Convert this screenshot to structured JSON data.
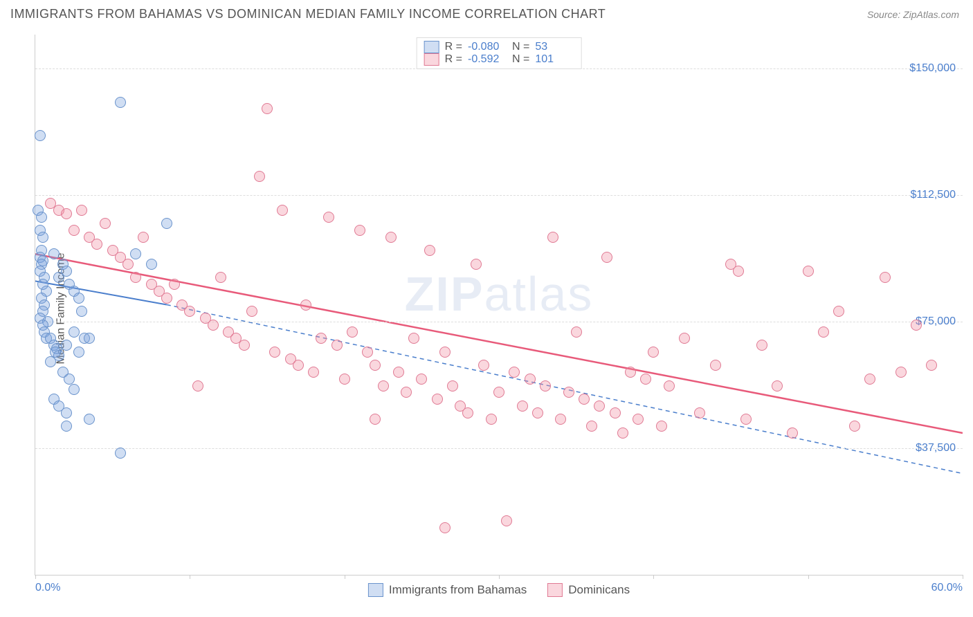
{
  "title": "IMMIGRANTS FROM BAHAMAS VS DOMINICAN MEDIAN FAMILY INCOME CORRELATION CHART",
  "source": "Source: ZipAtlas.com",
  "ylabel": "Median Family Income",
  "watermark_bold": "ZIP",
  "watermark_rest": "atlas",
  "xlim": [
    0,
    60
  ],
  "ylim": [
    0,
    160000
  ],
  "xlim_labels": [
    "0.0%",
    "60.0%"
  ],
  "ytick_values": [
    37500,
    75000,
    112500,
    150000
  ],
  "ytick_labels": [
    "$37,500",
    "$75,000",
    "$112,500",
    "$150,000"
  ],
  "xtick_values": [
    0,
    10,
    20,
    30,
    40,
    50,
    60
  ],
  "series": [
    {
      "name": "Immigrants from Bahamas",
      "fill": "rgba(120,160,220,0.35)",
      "stroke": "#6a93cc",
      "R": "-0.080",
      "N": "53",
      "trend": {
        "x1": 0,
        "y1": 87000,
        "x2": 8.5,
        "y2": 80000,
        "solid_until_x": 8.5,
        "dash_to_x": 60,
        "dash_y2": 30000,
        "color": "#4a7ecc",
        "width": 2
      },
      "points": [
        [
          0.3,
          130000
        ],
        [
          0.2,
          108000
        ],
        [
          0.4,
          106000
        ],
        [
          0.3,
          102000
        ],
        [
          0.5,
          100000
        ],
        [
          0.4,
          96000
        ],
        [
          0.3,
          94000
        ],
        [
          0.5,
          93000
        ],
        [
          0.4,
          92000
        ],
        [
          0.3,
          90000
        ],
        [
          0.6,
          88000
        ],
        [
          0.5,
          86000
        ],
        [
          0.7,
          84000
        ],
        [
          0.4,
          82000
        ],
        [
          0.6,
          80000
        ],
        [
          0.5,
          78000
        ],
        [
          0.3,
          76000
        ],
        [
          0.8,
          75000
        ],
        [
          0.5,
          74000
        ],
        [
          0.6,
          72000
        ],
        [
          0.7,
          70000
        ],
        [
          1.0,
          70000
        ],
        [
          1.2,
          68000
        ],
        [
          1.4,
          67000
        ],
        [
          1.3,
          66000
        ],
        [
          1.5,
          65000
        ],
        [
          1.0,
          63000
        ],
        [
          1.2,
          95000
        ],
        [
          1.8,
          92000
        ],
        [
          2.0,
          90000
        ],
        [
          1.5,
          88000
        ],
        [
          2.2,
          86000
        ],
        [
          2.5,
          84000
        ],
        [
          2.8,
          82000
        ],
        [
          3.0,
          78000
        ],
        [
          2.5,
          72000
        ],
        [
          3.2,
          70000
        ],
        [
          2.0,
          68000
        ],
        [
          2.8,
          66000
        ],
        [
          3.5,
          70000
        ],
        [
          1.8,
          60000
        ],
        [
          2.2,
          58000
        ],
        [
          2.5,
          55000
        ],
        [
          1.2,
          52000
        ],
        [
          1.5,
          50000
        ],
        [
          2.0,
          48000
        ],
        [
          3.5,
          46000
        ],
        [
          2.0,
          44000
        ],
        [
          5.5,
          140000
        ],
        [
          5.5,
          36000
        ],
        [
          6.5,
          95000
        ],
        [
          7.5,
          92000
        ],
        [
          8.5,
          104000
        ]
      ]
    },
    {
      "name": "Dominicans",
      "fill": "rgba(240,140,160,0.35)",
      "stroke": "#e07a94",
      "R": "-0.592",
      "N": "101",
      "trend": {
        "x1": 0,
        "y1": 95000,
        "x2": 60,
        "y2": 42000,
        "color": "#e85a7a",
        "width": 2.5
      },
      "points": [
        [
          1.0,
          110000
        ],
        [
          1.5,
          108000
        ],
        [
          2.0,
          107000
        ],
        [
          2.5,
          102000
        ],
        [
          3.0,
          108000
        ],
        [
          3.5,
          100000
        ],
        [
          4.0,
          98000
        ],
        [
          4.5,
          104000
        ],
        [
          5.0,
          96000
        ],
        [
          5.5,
          94000
        ],
        [
          6.0,
          92000
        ],
        [
          6.5,
          88000
        ],
        [
          7.0,
          100000
        ],
        [
          7.5,
          86000
        ],
        [
          8.0,
          84000
        ],
        [
          8.5,
          82000
        ],
        [
          9.0,
          86000
        ],
        [
          9.5,
          80000
        ],
        [
          10.0,
          78000
        ],
        [
          10.5,
          56000
        ],
        [
          11.0,
          76000
        ],
        [
          11.5,
          74000
        ],
        [
          12.0,
          88000
        ],
        [
          12.5,
          72000
        ],
        [
          13.0,
          70000
        ],
        [
          13.5,
          68000
        ],
        [
          14.0,
          78000
        ],
        [
          14.5,
          118000
        ],
        [
          15.0,
          138000
        ],
        [
          15.5,
          66000
        ],
        [
          16.0,
          108000
        ],
        [
          16.5,
          64000
        ],
        [
          17.0,
          62000
        ],
        [
          17.5,
          80000
        ],
        [
          18.0,
          60000
        ],
        [
          18.5,
          70000
        ],
        [
          19.0,
          106000
        ],
        [
          19.5,
          68000
        ],
        [
          20.0,
          58000
        ],
        [
          20.5,
          72000
        ],
        [
          21.0,
          102000
        ],
        [
          21.5,
          66000
        ],
        [
          22.0,
          62000
        ],
        [
          22.5,
          56000
        ],
        [
          23.0,
          100000
        ],
        [
          23.5,
          60000
        ],
        [
          24.0,
          54000
        ],
        [
          24.5,
          70000
        ],
        [
          25.0,
          58000
        ],
        [
          25.5,
          96000
        ],
        [
          26.0,
          52000
        ],
        [
          26.5,
          66000
        ],
        [
          27.0,
          56000
        ],
        [
          27.5,
          50000
        ],
        [
          28.0,
          48000
        ],
        [
          28.5,
          92000
        ],
        [
          29.0,
          62000
        ],
        [
          29.5,
          46000
        ],
        [
          30.0,
          54000
        ],
        [
          30.5,
          16000
        ],
        [
          31.0,
          60000
        ],
        [
          31.5,
          50000
        ],
        [
          32.0,
          58000
        ],
        [
          32.5,
          48000
        ],
        [
          33.0,
          56000
        ],
        [
          33.5,
          100000
        ],
        [
          34.0,
          46000
        ],
        [
          34.5,
          54000
        ],
        [
          35.0,
          72000
        ],
        [
          35.5,
          52000
        ],
        [
          36.0,
          44000
        ],
        [
          36.5,
          50000
        ],
        [
          37.0,
          94000
        ],
        [
          37.5,
          48000
        ],
        [
          38.0,
          42000
        ],
        [
          38.5,
          60000
        ],
        [
          39.0,
          46000
        ],
        [
          39.5,
          58000
        ],
        [
          40.0,
          66000
        ],
        [
          40.5,
          44000
        ],
        [
          41.0,
          56000
        ],
        [
          42.0,
          70000
        ],
        [
          43.0,
          48000
        ],
        [
          44.0,
          62000
        ],
        [
          45.0,
          92000
        ],
        [
          46.0,
          46000
        ],
        [
          47.0,
          68000
        ],
        [
          48.0,
          56000
        ],
        [
          49.0,
          42000
        ],
        [
          50.0,
          90000
        ],
        [
          51.0,
          72000
        ],
        [
          52.0,
          78000
        ],
        [
          53.0,
          44000
        ],
        [
          54.0,
          58000
        ],
        [
          55.0,
          88000
        ],
        [
          56.0,
          60000
        ],
        [
          26.5,
          14000
        ],
        [
          45.5,
          90000
        ],
        [
          57.0,
          74000
        ],
        [
          58.0,
          62000
        ],
        [
          22.0,
          46000
        ]
      ]
    }
  ],
  "bottom_legend": [
    {
      "swatch_fill": "rgba(120,160,220,0.35)",
      "swatch_stroke": "#6a93cc",
      "label": "Immigrants from Bahamas"
    },
    {
      "swatch_fill": "rgba(240,140,160,0.35)",
      "swatch_stroke": "#e07a94",
      "label": "Dominicans"
    }
  ],
  "colors": {
    "axis": "#cccccc",
    "grid": "#dddddd",
    "text": "#555555",
    "value": "#4a7ecc"
  }
}
